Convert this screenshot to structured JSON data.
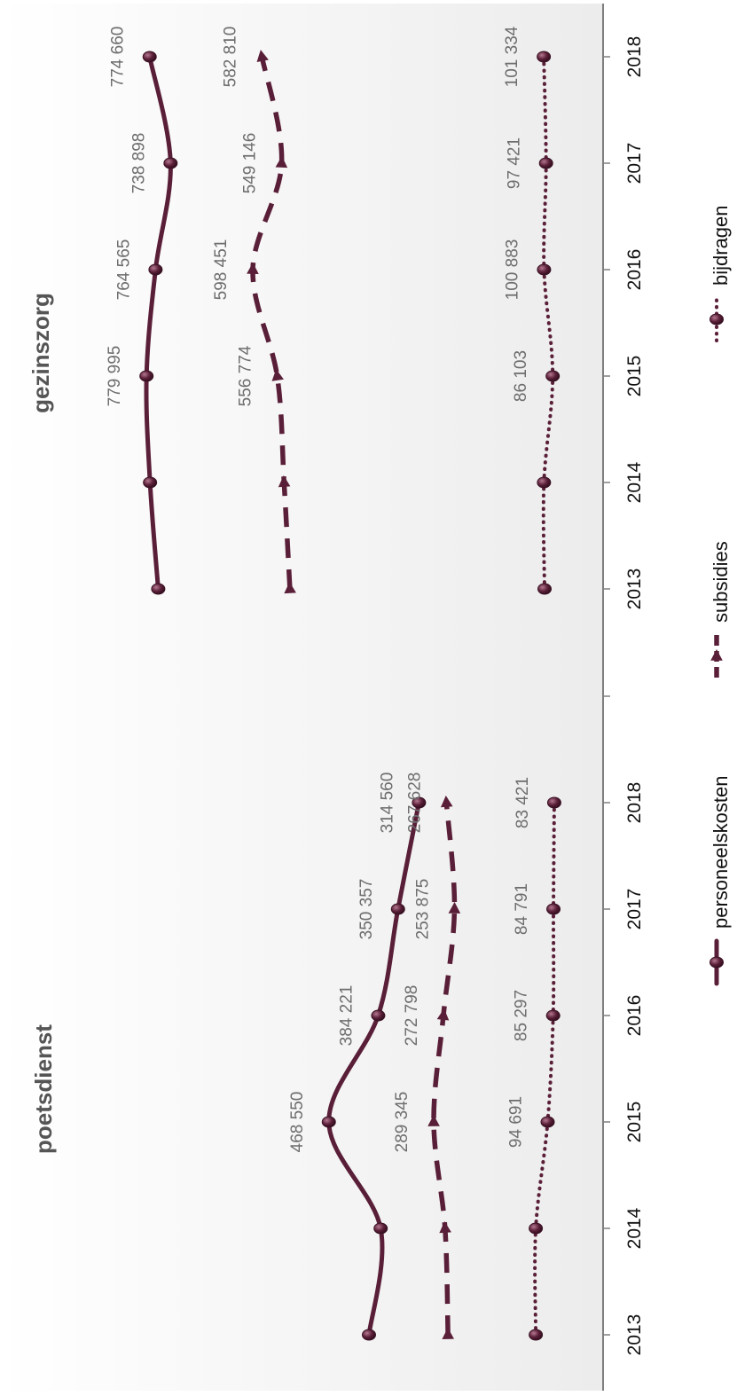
{
  "colors": {
    "series": "#5a1f38",
    "axis": "#7f7f7f",
    "label": "#6d6d6d",
    "panel_light": "#ffffff",
    "panel_dark": "#ededed"
  },
  "legend": [
    {
      "key": "personeelskosten",
      "label": "personeelskosten",
      "line": "solid",
      "marker": "circle"
    },
    {
      "key": "subsidies",
      "label": "subsidies",
      "line": "dashed",
      "marker": "triangle"
    },
    {
      "key": "bijdragen",
      "label": "bijdragen",
      "line": "dotted",
      "marker": "circle"
    }
  ],
  "chart_data": [
    {
      "type": "line",
      "title": "poetsdienst",
      "x": [
        "2013",
        "2014",
        "2015",
        "2016",
        "2017",
        "2018"
      ],
      "ylim": [
        0,
        800000
      ],
      "orientation": "rotated-90-ccw",
      "grid": false,
      "legend_position": "bottom",
      "series": [
        {
          "name": "personeelskosten",
          "values": [
            400000,
            380000,
            468550,
            384221,
            350357,
            314560
          ],
          "labels": [
            "",
            "",
            "468 550",
            "384 221",
            "350 357",
            "314 560"
          ]
        },
        {
          "name": "subsidies",
          "values": [
            265000,
            270000,
            289345,
            272798,
            253875,
            267628
          ],
          "labels": [
            "",
            "",
            "289 345",
            "272 798",
            "253 875",
            "267 628"
          ]
        },
        {
          "name": "bijdragen",
          "values": [
            115000,
            115000,
            94691,
            85297,
            84791,
            83421
          ],
          "labels": [
            "",
            "",
            "94 691",
            "85 297",
            "84 791",
            "83 421"
          ]
        }
      ]
    },
    {
      "type": "line",
      "title": "gezinszorg",
      "x": [
        "2013",
        "2014",
        "2015",
        "2016",
        "2017",
        "2018"
      ],
      "ylim": [
        0,
        800000
      ],
      "orientation": "rotated-90-ccw",
      "grid": false,
      "legend_position": "bottom",
      "series": [
        {
          "name": "personeelskosten",
          "values": [
            760000,
            774000,
            779995,
            764565,
            738898,
            774660
          ],
          "labels": [
            "",
            "",
            "779 995",
            "764 565",
            "738 898",
            "774 660"
          ]
        },
        {
          "name": "subsidies",
          "values": [
            535000,
            545000,
            556774,
            598451,
            549146,
            582810
          ],
          "labels": [
            "",
            "",
            "556 774",
            "598 451",
            "549 146",
            "582 810"
          ]
        },
        {
          "name": "bijdragen",
          "values": [
            100000,
            101000,
            86103,
            100883,
            97421,
            101334
          ],
          "labels": [
            "",
            "",
            "86 103",
            "100 883",
            "97 421",
            "101 334"
          ]
        }
      ]
    }
  ]
}
